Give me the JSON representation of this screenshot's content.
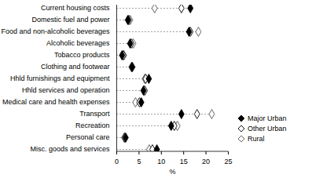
{
  "chart_data": {
    "type": "dot",
    "orientation": "horizontal",
    "legend": "right",
    "grid": false,
    "xlabel": "%",
    "xlim": [
      0,
      25
    ],
    "xticks": [
      0,
      5,
      10,
      15,
      20,
      25
    ],
    "categories": [
      "Current housing costs",
      "Domestic fuel and power",
      "Food and non-alcoholic beverages",
      "Alcoholic beverages",
      "Tobacco products",
      "Clothing and footwear",
      "Hhld furnishings and equipment",
      "Hhld services and operation",
      "Medical care and health expenses",
      "Transport",
      "Recreation",
      "Personal care",
      "Misc. goods and services"
    ],
    "series": [
      {
        "name": "Major Urban",
        "color": "#000000",
        "marker": "diamond",
        "values": [
          16.5,
          2.5,
          16.2,
          3.0,
          1.2,
          3.5,
          7.2,
          6.0,
          5.5,
          14.5,
          12.2,
          2.0,
          9.0
        ]
      },
      {
        "name": "Other Urban",
        "color": "#000000",
        "marker": "open-diamond",
        "values": [
          14.5,
          2.7,
          16.5,
          3.3,
          1.5,
          3.4,
          6.5,
          6.3,
          5.1,
          18.0,
          12.9,
          1.8,
          8.0
        ]
      },
      {
        "name": "Rural",
        "color": "#555555",
        "marker": "open-diamond",
        "values": [
          8.5,
          3.0,
          18.3,
          3.7,
          1.6,
          3.3,
          6.3,
          6.1,
          4.2,
          21.3,
          13.6,
          1.7,
          7.3
        ]
      }
    ]
  }
}
